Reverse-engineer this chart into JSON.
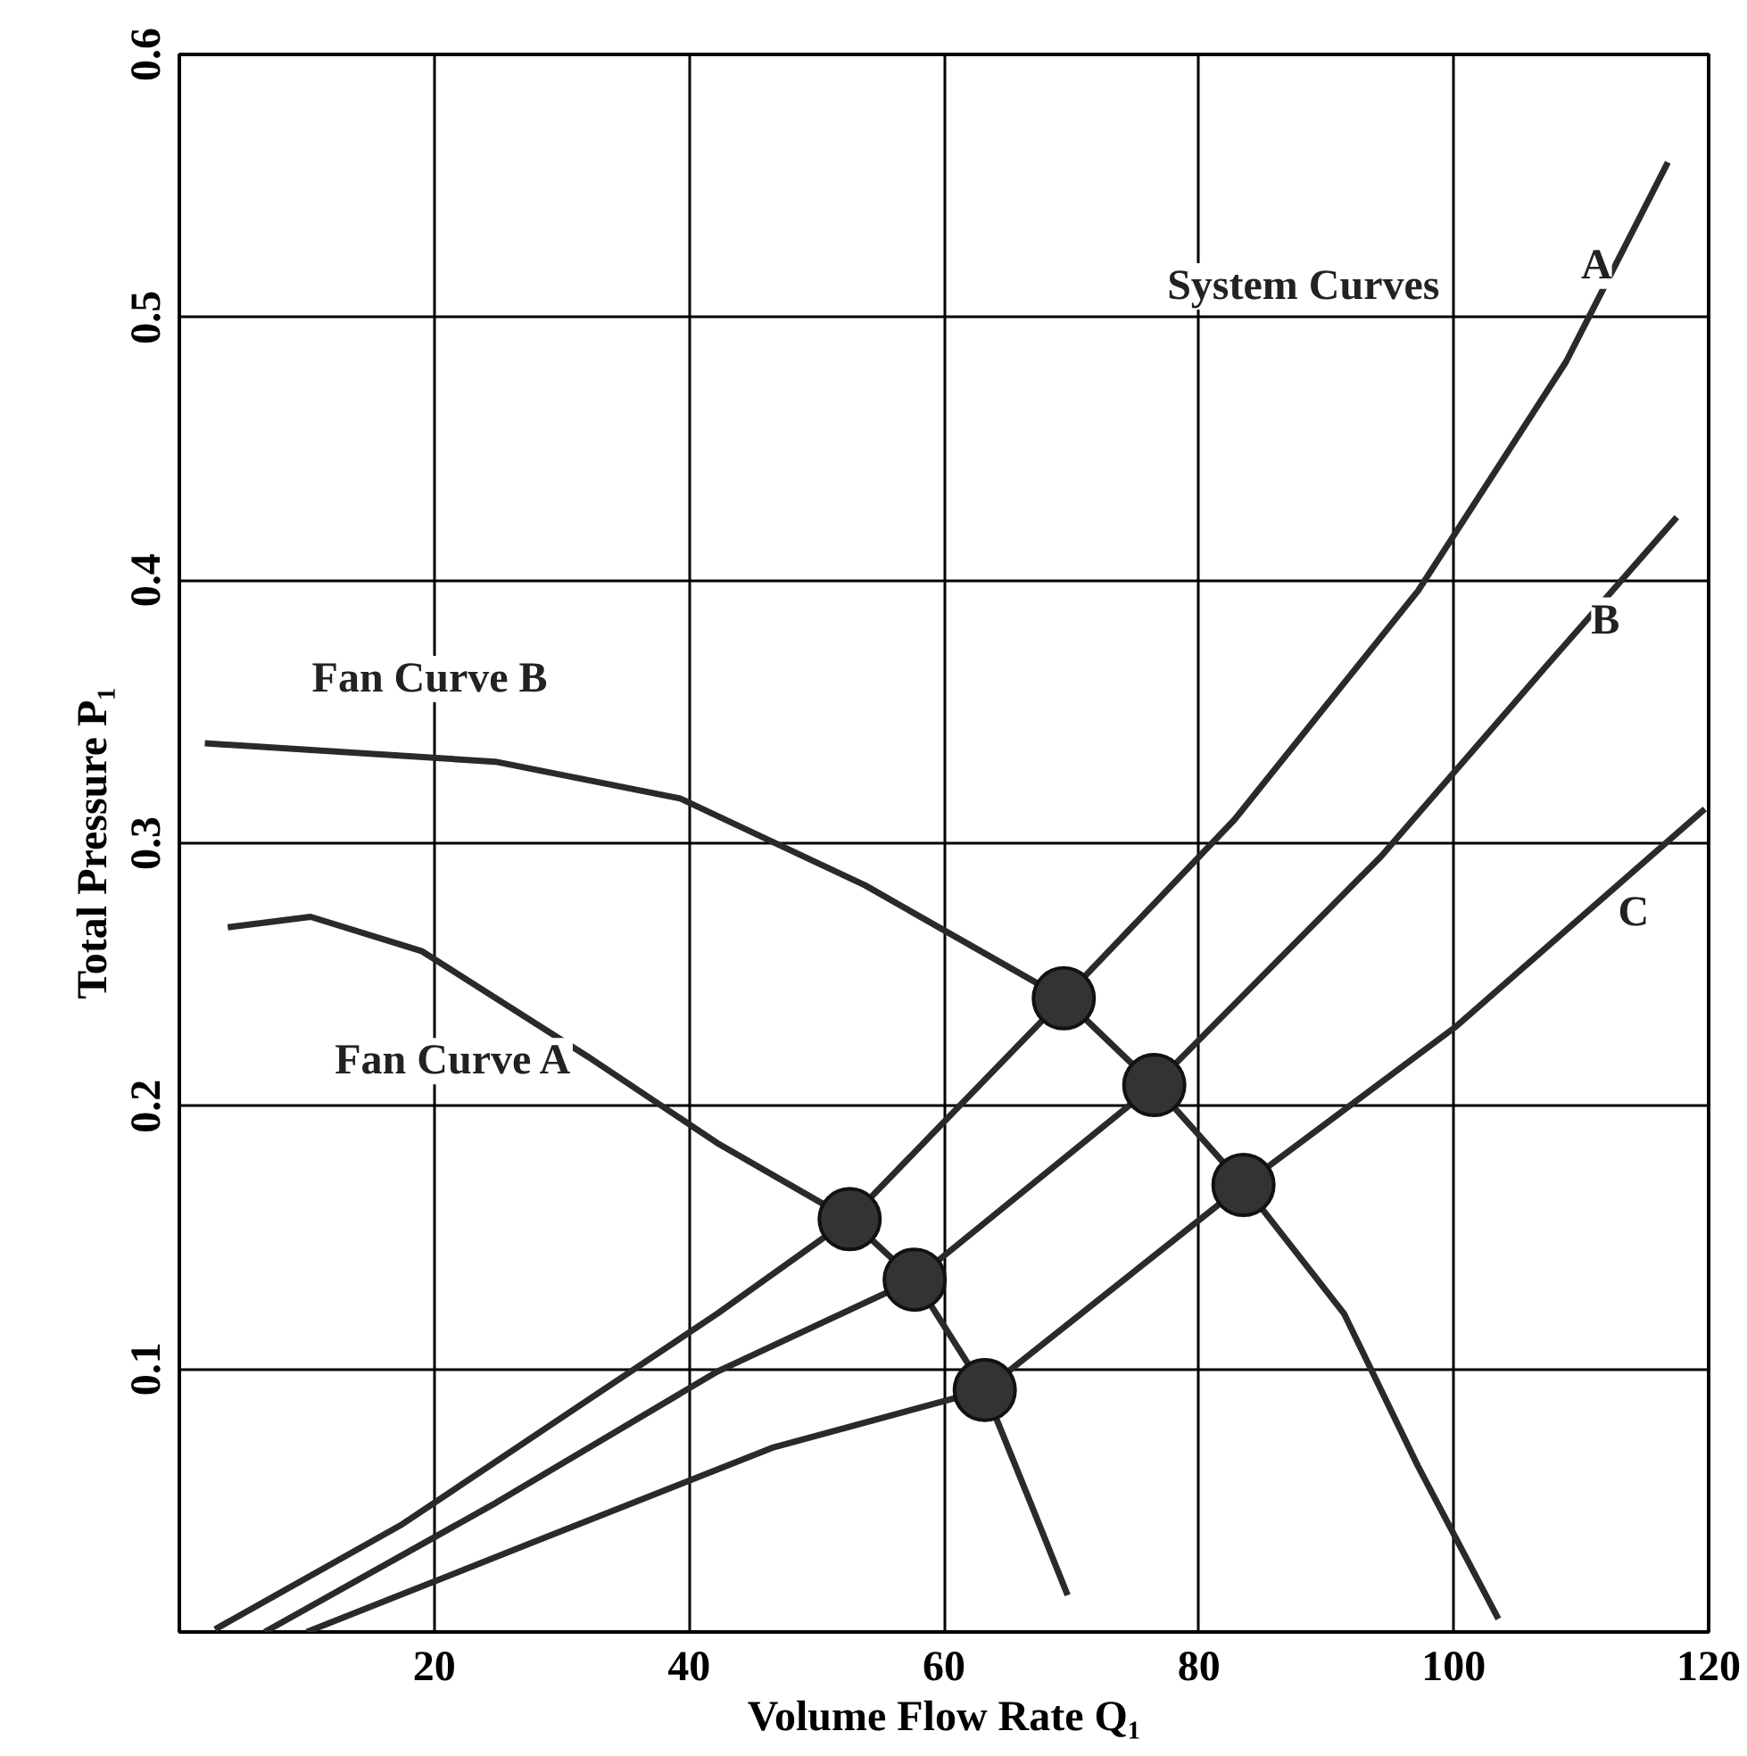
{
  "chart_data": {
    "type": "line",
    "xlabel": "Volume Flow Rate Q₁",
    "ylabel": "Total Pressure P₁",
    "xlim": [
      0,
      120
    ],
    "ylim": [
      0,
      0.6
    ],
    "xticks": [
      20,
      40,
      60,
      80,
      100,
      120
    ],
    "yticks": [
      0.1,
      0.2,
      0.3,
      0.4,
      0.5,
      0.6
    ],
    "grid": true,
    "line_style": "solid",
    "marker": "none",
    "series": [
      {
        "name": "Fan Curve B",
        "color": "#2a2a2a",
        "x": [
          2,
          24.8,
          39.3,
          53.8,
          69.4,
          76.5,
          83.5,
          91.4,
          97.2,
          103.5
        ],
        "values": [
          0.338,
          0.331,
          0.317,
          0.284,
          0.241,
          0.208,
          0.17,
          0.121,
          0.063,
          0.005
        ]
      },
      {
        "name": "Fan Curve A",
        "color": "#2a2a2a",
        "x": [
          3.8,
          10.3,
          19,
          32,
          42.2,
          52.6,
          57.7,
          63.2,
          66.8,
          69.7
        ],
        "values": [
          0.268,
          0.272,
          0.259,
          0.219,
          0.186,
          0.157,
          0.134,
          0.092,
          0.049,
          0.014
        ]
      },
      {
        "name": "A",
        "color": "#2a2a2a",
        "x": [
          2.8,
          17.5,
          32,
          42.2,
          52.6,
          69.4,
          82.8,
          97.2,
          108.8,
          116.8
        ],
        "values": [
          0.001,
          0.041,
          0.088,
          0.121,
          0.157,
          0.241,
          0.309,
          0.396,
          0.483,
          0.559
        ]
      },
      {
        "name": "B",
        "color": "#2a2a2a",
        "x": [
          6.7,
          24.8,
          42.2,
          57.7,
          76.5,
          94.3,
          107.2,
          117.5
        ],
        "values": [
          0.0,
          0.049,
          0.099,
          0.134,
          0.208,
          0.295,
          0.367,
          0.424
        ]
      },
      {
        "name": "C",
        "color": "#2a2a2a",
        "x": [
          10,
          27.7,
          46.5,
          63.2,
          83.5,
          100.1,
          119.7
        ],
        "values": [
          0.0,
          0.034,
          0.07,
          0.092,
          0.17,
          0.23,
          0.313
        ]
      },
      {
        "type": "scatter",
        "marker": "circle",
        "color": "#333333",
        "x": [
          52.6,
          57.7,
          63.2,
          69.4,
          76.5,
          83.5
        ],
        "values": [
          0.157,
          0.134,
          0.092,
          0.241,
          0.208,
          0.17
        ]
      }
    ],
    "annotations": [
      "System Curves"
    ]
  }
}
